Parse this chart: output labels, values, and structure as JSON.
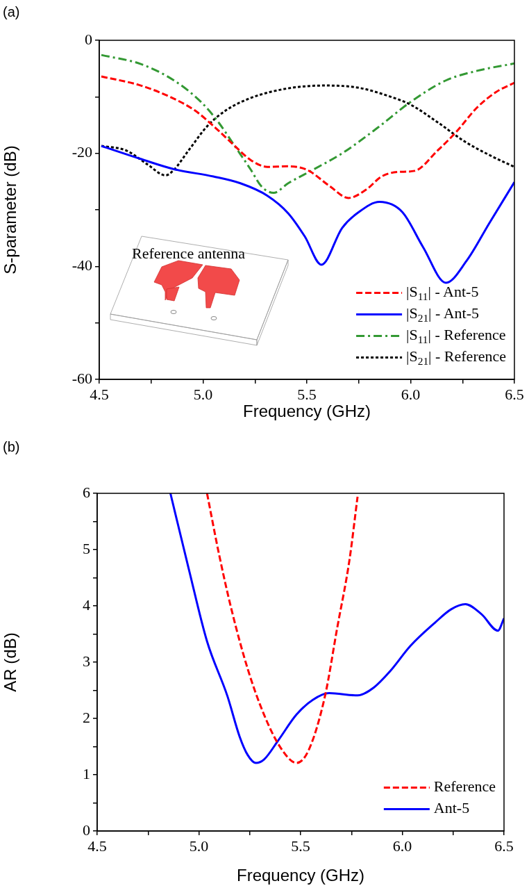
{
  "chart_data": [
    {
      "type": "line",
      "xlabel": "Frequency (GHz)",
      "ylabel": "S-parameter (dB)",
      "annotations": [
        "(a)",
        "Reference antenna"
      ],
      "xlim": [
        4.5,
        6.5
      ],
      "ylim": [
        -60,
        0
      ],
      "xticks": [
        4.5,
        {
          "value": 4.75,
          "label": null
        },
        {
          "value": 5,
          "label": "5.0"
        },
        {
          "value": 5.25,
          "label": null
        },
        5.5,
        {
          "value": 5.75,
          "label": null
        },
        {
          "value": 6,
          "label": "6.0"
        },
        {
          "value": 6.25,
          "label": null
        },
        6.5
      ],
      "yticks": [
        -60,
        {
          "value": -50,
          "label": null
        },
        -40,
        {
          "value": -30,
          "label": null
        },
        -20,
        {
          "value": -10,
          "label": null
        },
        0
      ],
      "grid": false,
      "legend": "bottom right",
      "marker": "none",
      "series": [
        {
          "name": "|S$_{11}$| - Ant-5",
          "color": "#ff0000",
          "line_style": "dashed",
          "x": [
            4.51,
            4.7,
            4.84,
            4.96,
            5.06,
            5.15,
            5.23,
            5.31,
            5.41,
            5.5,
            5.61,
            5.7,
            5.79,
            5.86,
            5.94,
            6.02,
            6.13,
            6.22,
            6.32,
            6.41,
            6.5
          ],
          "values": [
            -6.4,
            -8.0,
            -10.0,
            -12.4,
            -15.5,
            -18.6,
            -21.2,
            -22.4,
            -22.3,
            -22.9,
            -25.8,
            -27.9,
            -26.3,
            -24.1,
            -23.3,
            -23.1,
            -19.5,
            -16.2,
            -11.9,
            -9.2,
            -7.5
          ]
        },
        {
          "name": "|S$_{21}$| - Ant-5",
          "color": "#0000ff",
          "line_style": "solid",
          "x": [
            4.51,
            4.7,
            4.86,
            5.05,
            5.18,
            5.31,
            5.41,
            5.49,
            5.57,
            5.67,
            5.75,
            5.85,
            5.96,
            6.06,
            6.17,
            6.27,
            6.38,
            6.5
          ],
          "values": [
            -18.7,
            -21.0,
            -22.8,
            -24.1,
            -25.3,
            -27.5,
            -30.6,
            -34.7,
            -39.7,
            -33.2,
            -30.4,
            -28.6,
            -30.4,
            -36.6,
            -42.9,
            -39.0,
            -32.3,
            -25.1
          ]
        },
        {
          "name": "|S$_{11}$| - Reference",
          "color": "#339933",
          "line_style": "dashdot",
          "x": [
            4.51,
            4.7,
            4.86,
            4.99,
            5.07,
            5.16,
            5.23,
            5.28,
            5.34,
            5.41,
            5.53,
            5.67,
            5.84,
            6.0,
            6.17,
            6.32,
            6.5
          ],
          "values": [
            -2.6,
            -4.2,
            -7.1,
            -10.9,
            -14.3,
            -19.1,
            -22.9,
            -25.8,
            -27.0,
            -25.3,
            -22.9,
            -20.0,
            -15.5,
            -10.9,
            -7.1,
            -5.4,
            -4.1
          ]
        },
        {
          "name": "|S$_{21}$| - Reference",
          "color": "#000000",
          "line_style": "dotted",
          "x": [
            4.51,
            4.63,
            4.73,
            4.82,
            4.86,
            4.93,
            5.02,
            5.11,
            5.23,
            5.41,
            5.59,
            5.75,
            5.88,
            6.0,
            6.13,
            6.26,
            6.39,
            6.5
          ],
          "values": [
            -18.7,
            -19.5,
            -21.9,
            -23.9,
            -22.9,
            -19.5,
            -15.2,
            -12.4,
            -10.2,
            -8.5,
            -8.0,
            -8.4,
            -9.7,
            -11.4,
            -14.5,
            -17.9,
            -20.5,
            -22.4
          ]
        }
      ]
    },
    {
      "type": "line",
      "xlabel": "Frequency (GHz)",
      "ylabel": "AR (dB)",
      "annotations": [
        "(b)"
      ],
      "xlim": [
        4.5,
        6.5
      ],
      "ylim": [
        0,
        6
      ],
      "xticks": [
        4.5,
        {
          "value": 4.75,
          "label": null
        },
        {
          "value": 5,
          "label": "5.0"
        },
        {
          "value": 5.25,
          "label": null
        },
        5.5,
        {
          "value": 5.75,
          "label": null
        },
        {
          "value": 6,
          "label": "6.0"
        },
        {
          "value": 6.25,
          "label": null
        },
        6.5
      ],
      "yticks": [
        0,
        {
          "value": 0.5,
          "label": null
        },
        1,
        {
          "value": 1.5,
          "label": null
        },
        2,
        {
          "value": 2.5,
          "label": null
        },
        3,
        {
          "value": 3.5,
          "label": null
        },
        4,
        {
          "value": 4.5,
          "label": null
        },
        5,
        {
          "value": 5.5,
          "label": null
        },
        6
      ],
      "grid": false,
      "legend": "bottom right",
      "marker": "none",
      "series": [
        {
          "name": "Reference",
          "color": "#ff0000",
          "line_style": "dashed",
          "x": [
            5.04,
            5.1,
            5.16,
            5.24,
            5.32,
            5.4,
            5.48,
            5.54,
            5.62,
            5.68,
            5.74,
            5.78
          ],
          "values": [
            6.0,
            4.9,
            3.94,
            2.88,
            2.07,
            1.49,
            1.21,
            1.44,
            2.4,
            3.61,
            4.81,
            5.94
          ]
        },
        {
          "name": "Ant-5",
          "color": "#0000ff",
          "line_style": "solid",
          "x": [
            4.86,
            4.95,
            5.04,
            5.14,
            5.2,
            5.24,
            5.28,
            5.32,
            5.39,
            5.48,
            5.56,
            5.64,
            5.78,
            5.86,
            5.94,
            6.04,
            6.16,
            6.24,
            6.31,
            6.39,
            6.47,
            6.5
          ],
          "values": [
            6.0,
            4.66,
            3.37,
            2.4,
            1.68,
            1.35,
            1.21,
            1.27,
            1.61,
            2.07,
            2.33,
            2.45,
            2.41,
            2.55,
            2.84,
            3.29,
            3.7,
            3.94,
            4.03,
            3.85,
            3.56,
            3.78
          ]
        }
      ]
    }
  ]
}
